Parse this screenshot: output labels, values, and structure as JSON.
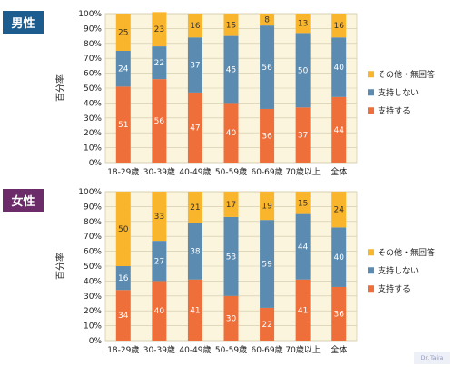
{
  "colors": {
    "support": "#ef6f3a",
    "not_support": "#5b8bb0",
    "other": "#f9b52b",
    "plot_bg": "#fbf5de",
    "male_badge": "#1c5c8f",
    "female_badge": "#6c2c6a"
  },
  "watermark": "Dr. Taira",
  "chart_data": [
    {
      "type": "bar",
      "stacked": true,
      "badge": "男性",
      "ylabel": "百分率",
      "categories": [
        "18-29歳",
        "30-39歳",
        "40-49歳",
        "50-59歳",
        "60-69歳",
        "70歳以上",
        "全体"
      ],
      "yticks": [
        "0%",
        "10%",
        "20%",
        "30%",
        "40%",
        "50%",
        "60%",
        "70%",
        "80%",
        "90%",
        "100%"
      ],
      "ylim": [
        0,
        100
      ],
      "legend_position": "right",
      "series": [
        {
          "name": "支持する",
          "values": [
            51,
            56,
            47,
            40,
            36,
            37,
            44
          ]
        },
        {
          "name": "支持しない",
          "values": [
            24,
            22,
            37,
            45,
            56,
            50,
            40
          ]
        },
        {
          "name": "その他・無回答",
          "values": [
            25,
            23,
            16,
            15,
            8,
            13,
            16
          ]
        }
      ]
    },
    {
      "type": "bar",
      "stacked": true,
      "badge": "女性",
      "ylabel": "百分率",
      "categories": [
        "18-29歳",
        "30-39歳",
        "40-49歳",
        "50-59歳",
        "60-69歳",
        "70歳以上",
        "全体"
      ],
      "yticks": [
        "0%",
        "10%",
        "20%",
        "30%",
        "40%",
        "50%",
        "60%",
        "70%",
        "80%",
        "90%",
        "100%"
      ],
      "ylim": [
        0,
        100
      ],
      "legend_position": "right",
      "series": [
        {
          "name": "支持する",
          "values": [
            34,
            40,
            41,
            30,
            22,
            41,
            36
          ]
        },
        {
          "name": "支持しない",
          "values": [
            16,
            27,
            38,
            53,
            59,
            44,
            40
          ]
        },
        {
          "name": "その他・無回答",
          "values": [
            50,
            33,
            21,
            17,
            19,
            15,
            24
          ]
        }
      ]
    }
  ]
}
